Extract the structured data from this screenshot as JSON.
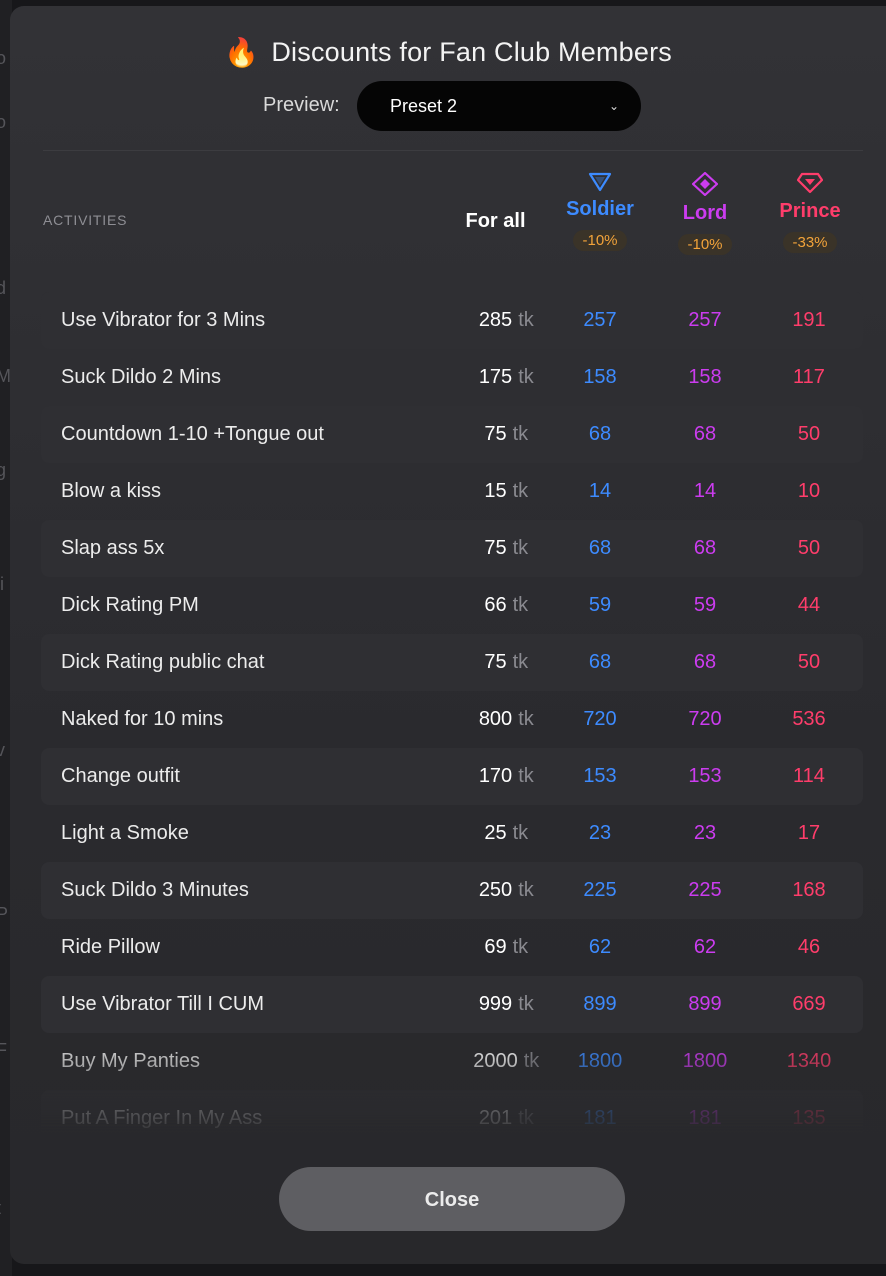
{
  "modal": {
    "title": "Discounts for Fan Club Members",
    "title_icon": "fire-icon",
    "preview_label": "Preview:",
    "preview_value": "Preset 2",
    "close_label": "Close"
  },
  "table": {
    "activities_header": "ACTIVITIES",
    "forall_header": "For all",
    "currency": "tk",
    "tiers": [
      {
        "name": "Soldier",
        "discount": "-10%",
        "color": "#3d8bff",
        "icon": "triangle-down-icon"
      },
      {
        "name": "Lord",
        "discount": "-10%",
        "color": "#cc3cf0",
        "icon": "diamond-icon"
      },
      {
        "name": "Prince",
        "discount": "-33%",
        "color": "#ff3d6b",
        "icon": "gem-icon"
      }
    ],
    "rows": [
      {
        "activity": "Use Vibrator for 3 Mins",
        "price": "285",
        "soldier": "257",
        "lord": "257",
        "prince": "191"
      },
      {
        "activity": "Suck Dildo 2 Mins",
        "price": "175",
        "soldier": "158",
        "lord": "158",
        "prince": "117"
      },
      {
        "activity": "Countdown 1-10 +Tongue out",
        "price": "75",
        "soldier": "68",
        "lord": "68",
        "prince": "50"
      },
      {
        "activity": "Blow a kiss",
        "price": "15",
        "soldier": "14",
        "lord": "14",
        "prince": "10"
      },
      {
        "activity": "Slap ass 5x",
        "price": "75",
        "soldier": "68",
        "lord": "68",
        "prince": "50"
      },
      {
        "activity": "Dick Rating PM",
        "price": "66",
        "soldier": "59",
        "lord": "59",
        "prince": "44"
      },
      {
        "activity": "Dick Rating public chat",
        "price": "75",
        "soldier": "68",
        "lord": "68",
        "prince": "50"
      },
      {
        "activity": "Naked for 10 mins",
        "price": "800",
        "soldier": "720",
        "lord": "720",
        "prince": "536"
      },
      {
        "activity": "Change outfit",
        "price": "170",
        "soldier": "153",
        "lord": "153",
        "prince": "114"
      },
      {
        "activity": "Light a Smoke",
        "price": "25",
        "soldier": "23",
        "lord": "23",
        "prince": "17"
      },
      {
        "activity": "Suck Dildo 3 Minutes",
        "price": "250",
        "soldier": "225",
        "lord": "225",
        "prince": "168"
      },
      {
        "activity": "Ride Pillow",
        "price": "69",
        "soldier": "62",
        "lord": "62",
        "prince": "46"
      },
      {
        "activity": "Use Vibrator Till I CUM",
        "price": "999",
        "soldier": "899",
        "lord": "899",
        "prince": "669"
      },
      {
        "activity": "Buy My Panties",
        "price": "2000",
        "soldier": "1800",
        "lord": "1800",
        "prince": "1340"
      },
      {
        "activity": "Put A Finger In My Ass",
        "price": "201",
        "soldier": "181",
        "lord": "181",
        "prince": "135"
      }
    ]
  }
}
